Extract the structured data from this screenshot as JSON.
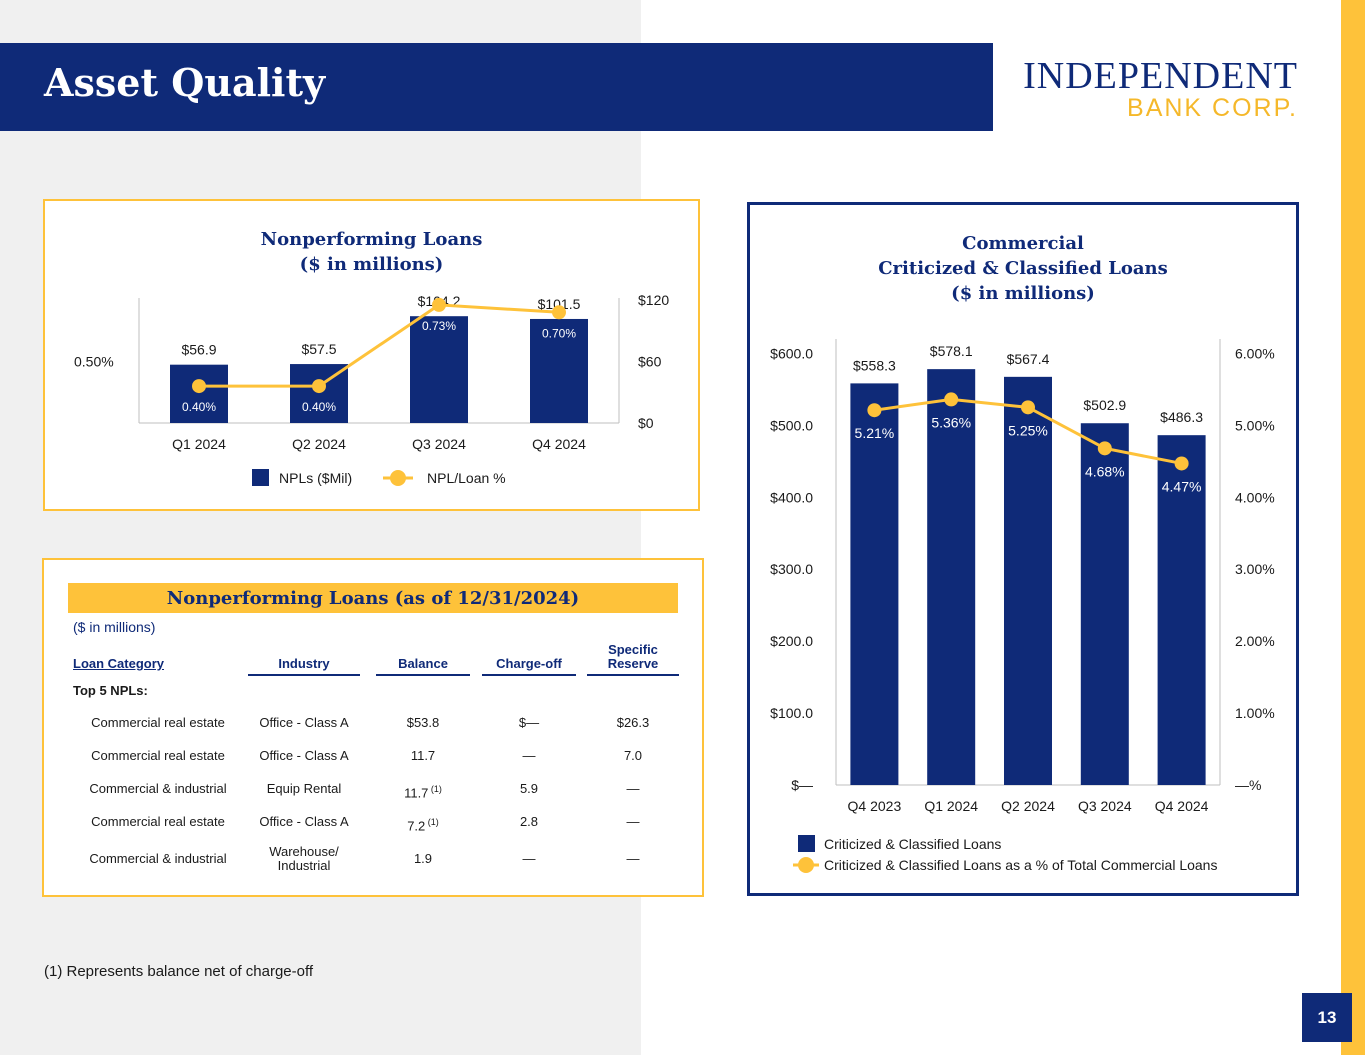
{
  "header": {
    "title": "Asset Quality"
  },
  "logo": {
    "line1": "INDEPENDENT",
    "line2": "BANK CORP."
  },
  "colors": {
    "navy": "#0f2a78",
    "gold": "#fec23a"
  },
  "chart_data": [
    {
      "type": "bar",
      "title": "Nonperforming Loans",
      "subtitle": "($ in millions)",
      "categories": [
        "Q1 2024",
        "Q2 2024",
        "Q3 2024",
        "Q4 2024"
      ],
      "series": [
        {
          "name": "NPLs ($Mil)",
          "type": "bar",
          "values": [
            56.9,
            57.5,
            104.2,
            101.5
          ],
          "labels": [
            "$56.9",
            "$57.5",
            "$104.2",
            "$101.5"
          ]
        },
        {
          "name": "NPL/Loan %",
          "type": "line",
          "values": [
            0.4,
            0.4,
            0.73,
            0.7
          ],
          "labels": [
            "0.40%",
            "0.40%",
            "0.73%",
            "0.70%"
          ]
        }
      ],
      "ylim": [
        0,
        120
      ],
      "y_ticks": [
        "$0",
        "$60",
        "$120"
      ],
      "y2_range": [
        0.25,
        0.75
      ],
      "y2_ticks": [
        "0.50%"
      ],
      "legend": "bottom",
      "grid": false
    },
    {
      "type": "bar",
      "title": "Commercial",
      "subtitle": "Criticized & Classified Loans",
      "subtitle2": "($ in millions)",
      "categories": [
        "Q4 2023",
        "Q1 2024",
        "Q2 2024",
        "Q3 2024",
        "Q4 2024"
      ],
      "series": [
        {
          "name": "Criticized & Classified Loans",
          "type": "bar",
          "values": [
            558.3,
            578.1,
            567.4,
            502.9,
            486.3
          ],
          "labels": [
            "$558.3",
            "$578.1",
            "$567.4",
            "$502.9",
            "$486.3"
          ]
        },
        {
          "name": "Criticized & Classified Loans as a % of Total Commercial Loans",
          "type": "line",
          "values": [
            5.21,
            5.36,
            5.25,
            4.68,
            4.47
          ],
          "labels": [
            "5.21%",
            "5.36%",
            "5.25%",
            "4.68%",
            "4.47%"
          ]
        }
      ],
      "ylim": [
        0,
        620
      ],
      "y_ticks": [
        "$—",
        "$100.0",
        "$200.0",
        "$300.0",
        "$400.0",
        "$500.0",
        "$600.0"
      ],
      "y2_range": [
        0,
        6
      ],
      "y2_ticks": [
        "—%",
        "1.00%",
        "2.00%",
        "3.00%",
        "4.00%",
        "5.00%",
        "6.00%"
      ],
      "legend": "bottom-left",
      "grid": false
    }
  ],
  "npl_table": {
    "title": "Nonperforming Loans (as of 12/31/2024)",
    "units": "($ in millions)",
    "columns": [
      "Loan Category",
      "Industry",
      "Balance",
      "Charge-off",
      "Specific Reserve"
    ],
    "group_label": "Top 5 NPLs:",
    "rows": [
      {
        "category": "Commercial real estate",
        "industry": "Office - Class A",
        "balance": "$53.8",
        "note": "",
        "chargeoff": "$—",
        "reserve": "$26.3"
      },
      {
        "category": "Commercial real estate",
        "industry": "Office - Class A",
        "balance": "11.7",
        "note": "",
        "chargeoff": "—",
        "reserve": "7.0"
      },
      {
        "category": "Commercial & industrial",
        "industry": "Equip Rental",
        "balance": "11.7",
        "note": "(1)",
        "chargeoff": "5.9",
        "reserve": "—"
      },
      {
        "category": "Commercial real estate",
        "industry": "Office - Class A",
        "balance": "7.2",
        "note": "(1)",
        "chargeoff": "2.8",
        "reserve": "—"
      },
      {
        "category": "Commercial & industrial",
        "industry": "Warehouse/ Industrial",
        "balance": "1.9",
        "note": "",
        "chargeoff": "—",
        "reserve": "—"
      }
    ]
  },
  "footnote": "(1) Represents balance net of charge-off",
  "page_number": "13"
}
